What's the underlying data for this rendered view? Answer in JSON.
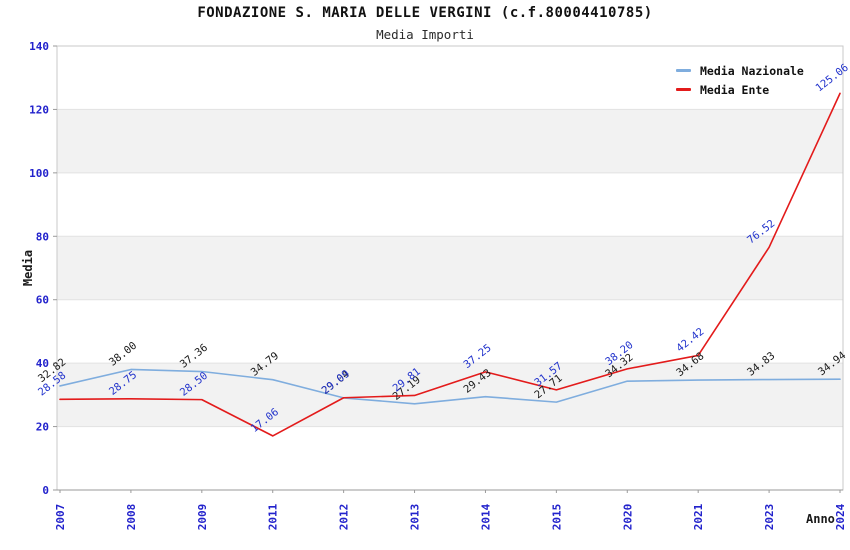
{
  "header": {
    "title": "FONDAZIONE S. MARIA DELLE VERGINI (c.f.80004410785)",
    "subtitle": "Media Importi"
  },
  "chart_data": {
    "type": "line",
    "title": "FONDAZIONE S. MARIA DELLE VERGINI (c.f.80004410785)",
    "subtitle": "Media Importi",
    "xlabel": "Anno",
    "ylabel": "Media",
    "ylim": [
      0,
      140
    ],
    "ytick_step": 20,
    "grid": "horizontal-alternating-bands",
    "legend_position": "top-right",
    "categories": [
      "2007",
      "2008",
      "2009",
      "2011",
      "2012",
      "2013",
      "2014",
      "2015",
      "2020",
      "2021",
      "2023",
      "2024"
    ],
    "series": [
      {
        "name": "Media Nazionale",
        "color": "#7fadde",
        "label_color": "#1a1a1a",
        "values": [
          32.82,
          38.0,
          37.36,
          34.79,
          29.04,
          27.19,
          29.43,
          27.71,
          34.32,
          34.68,
          34.83,
          34.94
        ]
      },
      {
        "name": "Media Ente",
        "color": "#e31b1b",
        "label_color": "#2233cc",
        "values": [
          28.58,
          28.75,
          28.5,
          17.06,
          29.09,
          29.81,
          37.25,
          31.57,
          38.2,
          42.42,
          76.52,
          125.06
        ]
      }
    ],
    "style": {
      "band_gray": "#f2f2f2",
      "band_white": "#ffffff",
      "grid_line": "#e2e2e2",
      "border": "#c9c9c9",
      "axis_line": "#9a9a9a",
      "axis_label_color": "#2222cc"
    }
  }
}
